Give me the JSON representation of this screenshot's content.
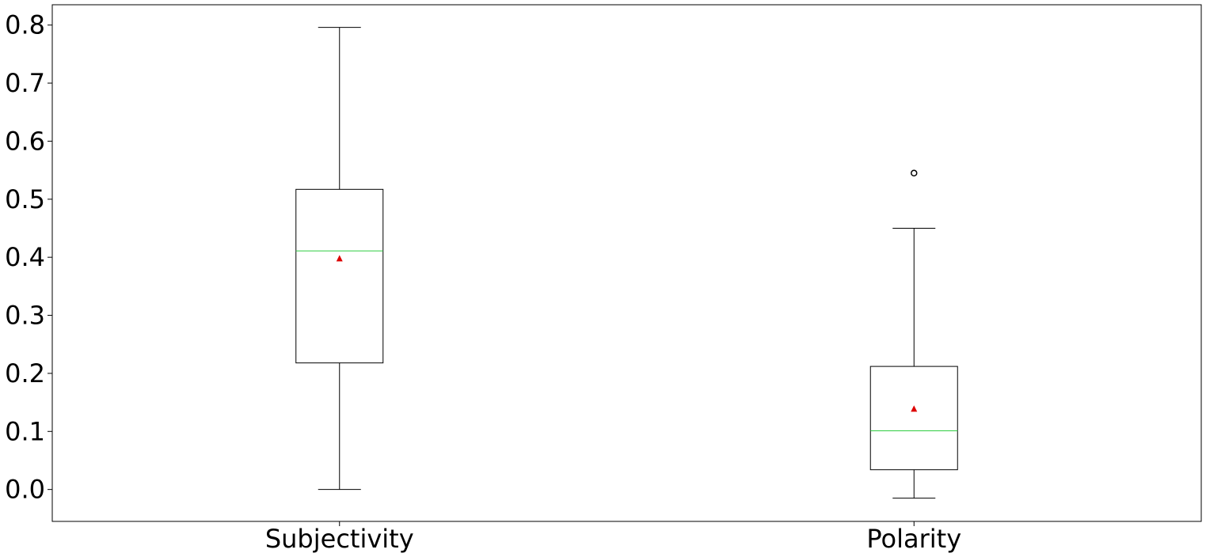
{
  "chart_data": {
    "type": "box",
    "title": "",
    "xlabel": "",
    "ylabel": "",
    "ylim": [
      -0.055,
      0.835
    ],
    "yticks": [
      0.0,
      0.1,
      0.2,
      0.3,
      0.4,
      0.5,
      0.6,
      0.7,
      0.8
    ],
    "ytick_labels": [
      "0.0",
      "0.1",
      "0.2",
      "0.3",
      "0.4",
      "0.5",
      "0.6",
      "0.7",
      "0.8"
    ],
    "categories": [
      "Subjectivity",
      "Polarity"
    ],
    "boxes": [
      {
        "label": "Subjectivity",
        "whisker_low": 0.0,
        "q1": 0.218,
        "median": 0.411,
        "q3": 0.517,
        "whisker_high": 0.796,
        "mean": 0.397,
        "outliers": []
      },
      {
        "label": "Polarity",
        "whisker_low": -0.015,
        "q1": 0.034,
        "median": 0.101,
        "q3": 0.212,
        "whisker_high": 0.45,
        "mean": 0.138,
        "outliers": [
          0.545
        ]
      }
    ],
    "colors": {
      "box": "#000000",
      "median": "#2ecc40",
      "mean_marker": "#dd0000"
    },
    "grid": false,
    "legend": "none"
  }
}
